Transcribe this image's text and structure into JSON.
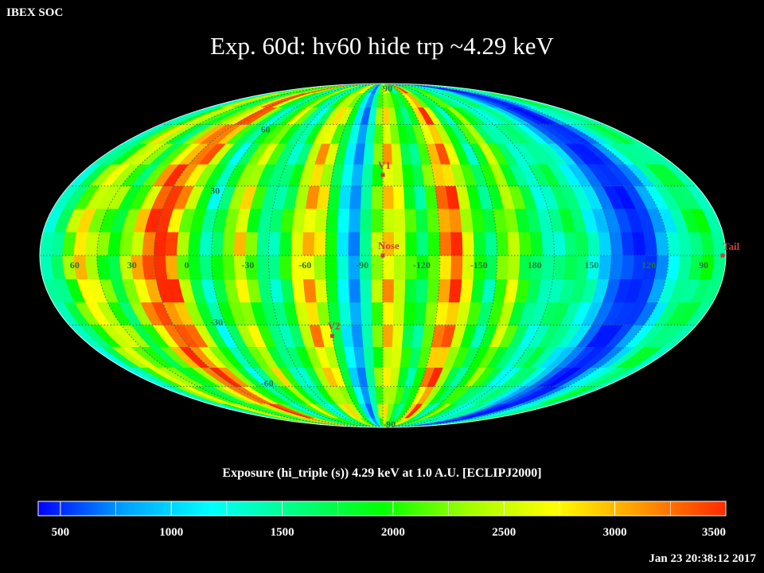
{
  "header": {
    "organization": "IBEX SOC",
    "title": "Exp.   60d: hv60 hide trp ~4.29 keV"
  },
  "map": {
    "projection": "mollweide",
    "frame": "ECLIPJ2000",
    "grid_lines": "dotted",
    "longitude_labels": [
      "60",
      "30",
      "0",
      "-30",
      "-60",
      "-90",
      "-120",
      "-150",
      "180",
      "150",
      "120",
      "90"
    ],
    "latitude_labels": [
      "90",
      "60",
      "30",
      "-30",
      "-60",
      "-90"
    ],
    "markers": [
      {
        "name": "V1",
        "lon": -105,
        "lat": 35
      },
      {
        "name": "Nose",
        "lon": -105,
        "lat": 0
      },
      {
        "name": "V2",
        "lon": -75,
        "lat": -35
      },
      {
        "name": "Tail",
        "lon": 75,
        "lat": 0
      }
    ],
    "marker_color": "#d23c3c"
  },
  "colorbar": {
    "title": "Exposure (hi_triple (s))  4.29 keV at 1.0 A.U. [ECLIPJ2000]",
    "min": 400,
    "max": 3500,
    "tick_labels": [
      "500",
      "1000",
      "1500",
      "2000",
      "2500",
      "3000",
      "3500"
    ],
    "colors": [
      "#0000ff",
      "#00a0ff",
      "#00ffff",
      "#00ff80",
      "#00ff00",
      "#a0ff00",
      "#ffff00",
      "#ff9900",
      "#ff2800"
    ]
  },
  "chart_data": {
    "type": "heatmap",
    "title": "Exp.   60d: hv60 hide trp ~4.29 keV",
    "colorbar_label": "Exposure (hi_triple (s))  4.29 keV at 1.0 A.U. [ECLIPJ2000]",
    "value_range": [
      400,
      3500
    ],
    "columns_ordered_left_to_right_lon_start": 75,
    "column_width_deg": 6,
    "column_mean_exposure_s": [
      1400,
      1650,
      2250,
      2800,
      2500,
      2200,
      1800,
      2300,
      2900,
      3400,
      3500,
      3200,
      2400,
      1900,
      1400,
      1800,
      2300,
      2700,
      2100,
      1600,
      1500,
      1900,
      2600,
      3000,
      2600,
      1900,
      1200,
      800,
      1500,
      2300,
      2900,
      2600,
      2000,
      1700,
      2200,
      3100,
      3400,
      2600,
      2000,
      1600,
      2100,
      2500,
      2000,
      1700,
      1400,
      1500,
      1700,
      1600,
      1300,
      1000,
      700,
      550,
      500,
      550,
      800,
      1200,
      1500,
      1700,
      1800,
      1500
    ],
    "annotations": [
      "V1",
      "Nose",
      "V2",
      "Tail"
    ],
    "timestamp": "Jan 23 20:38:12 2017"
  },
  "footer": {
    "timestamp": "Jan 23 20:38:12 2017"
  }
}
